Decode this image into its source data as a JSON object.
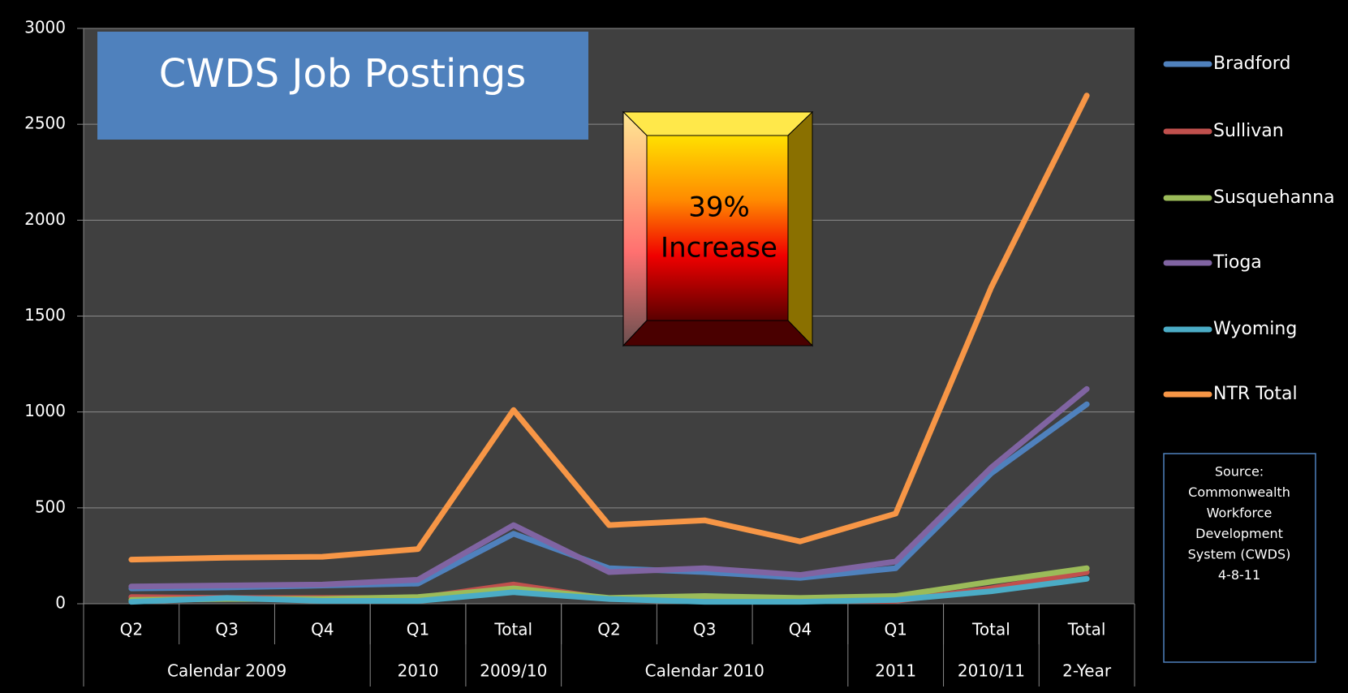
{
  "chart_data": {
    "type": "line",
    "title": "CWDS Job Postings",
    "callout": [
      "39%",
      "Increase"
    ],
    "source": [
      "Source:",
      "Commonwealth",
      "Workforce",
      "Development",
      "System (CWDS)",
      "4-8-11"
    ],
    "categories": [
      "Q2",
      "Q3",
      "Q4",
      "Q1",
      "Total",
      "Q2",
      "Q3",
      "Q4",
      "Q1",
      "Total",
      "Total"
    ],
    "category_groups": [
      "Calendar 2009",
      null,
      null,
      "2010",
      "2009/10",
      "Calendar 2010",
      null,
      null,
      "2011",
      "2010/11",
      "2-Year"
    ],
    "series": [
      {
        "name": "Bradford",
        "color": "#4f81bd",
        "values": [
          80,
          85,
          95,
          105,
          365,
          185,
          165,
          135,
          185,
          680,
          1040
        ]
      },
      {
        "name": "Sullivan",
        "color": "#c0504d",
        "values": [
          35,
          30,
          30,
          30,
          100,
          25,
          20,
          15,
          15,
          80,
          165
        ]
      },
      {
        "name": "Susquehanna",
        "color": "#9bbb59",
        "values": [
          20,
          25,
          25,
          35,
          80,
          30,
          40,
          30,
          40,
          115,
          185
        ]
      },
      {
        "name": "Tioga",
        "color": "#8064a2",
        "values": [
          90,
          95,
          100,
          125,
          410,
          165,
          185,
          150,
          220,
          710,
          1120
        ]
      },
      {
        "name": "Wyoming",
        "color": "#4bacc6",
        "values": [
          10,
          30,
          15,
          15,
          60,
          25,
          10,
          10,
          20,
          65,
          130
        ]
      },
      {
        "name": "NTR Total",
        "color": "#f79646",
        "values": [
          230,
          240,
          245,
          285,
          1010,
          410,
          435,
          325,
          470,
          1650,
          2650
        ]
      }
    ],
    "ylim": [
      0,
      3000
    ],
    "yticks": [
      0,
      500,
      1000,
      1500,
      2000,
      2500,
      3000
    ],
    "grid": true,
    "legend": "right"
  }
}
